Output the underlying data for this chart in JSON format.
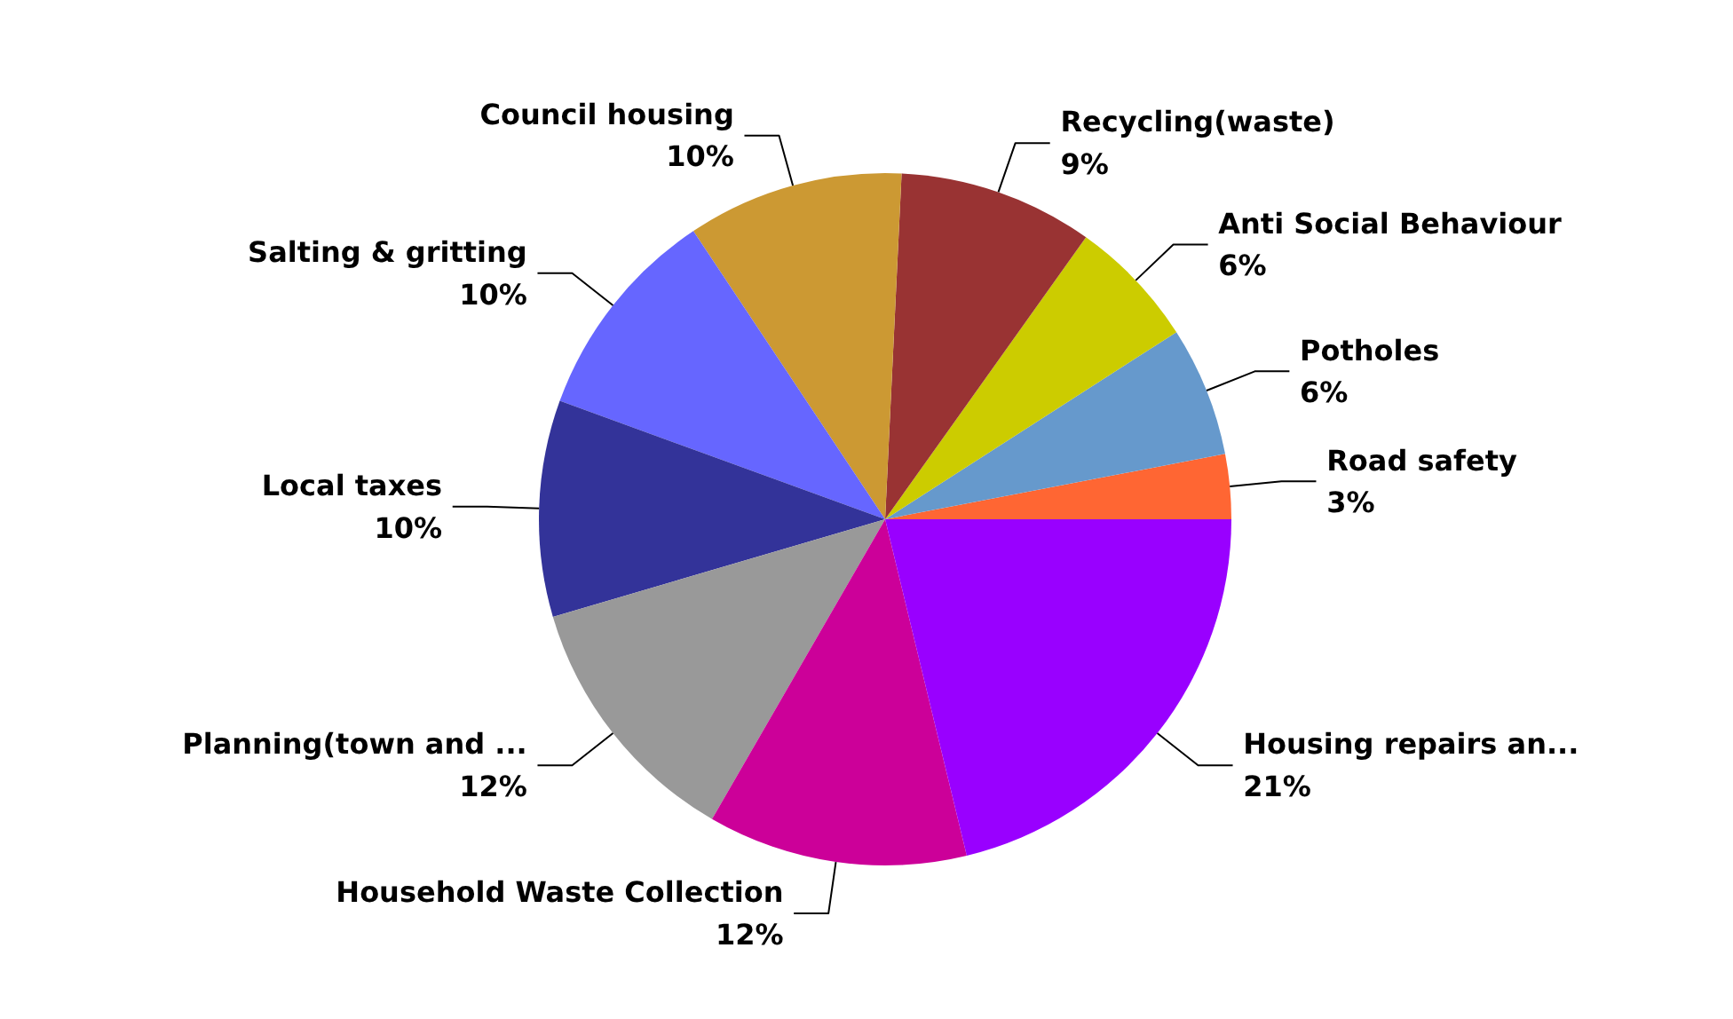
{
  "chart_data": {
    "type": "pie",
    "categories": [
      "Road safety",
      "Potholes",
      "Anti Social Behaviour",
      "Recycling(waste)",
      "Council housing",
      "Salting & gritting",
      "Local taxes",
      "Planning(town and ...",
      "Household Waste Collection",
      "Housing repairs an..."
    ],
    "values": [
      3,
      6,
      6,
      9,
      10,
      10,
      10,
      12,
      12,
      21
    ],
    "value_labels": [
      "3%",
      "6%",
      "6%",
      "9%",
      "10%",
      "10%",
      "10%",
      "12%",
      "12%",
      "21%"
    ],
    "colors": [
      "#ff6633",
      "#6699cc",
      "#cccc00",
      "#993333",
      "#cc9933",
      "#6666ff",
      "#333399",
      "#999999",
      "#cc0099",
      "#9900ff"
    ]
  }
}
